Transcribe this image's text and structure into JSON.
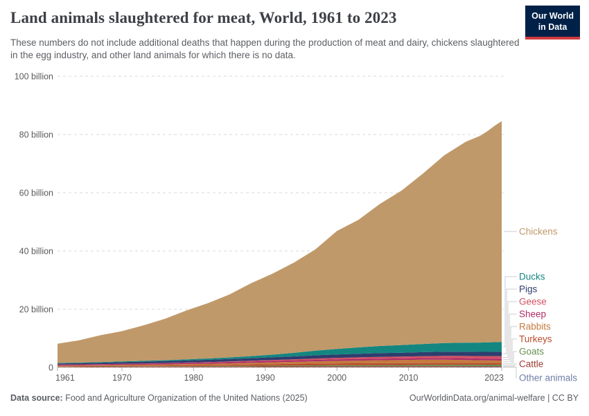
{
  "header": {
    "title": "Land animals slaughtered for meat, World, 1961 to 2023",
    "subtitle": "These numbers do not include additional deaths that happen during the production of meat and dairy, chickens slaughtered in the egg industry, and other land animals for which there is no data.",
    "logo": {
      "line1": "Our World",
      "line2": "in Data",
      "bg_color": "#002147",
      "accent_color": "#CE3A3E"
    }
  },
  "chart_data": {
    "type": "area",
    "stacked": true,
    "title": "Land animals slaughtered for meat, World, 1961 to 2023",
    "xlabel": "",
    "ylabel": "",
    "unit": "billion animals per year",
    "ylim": [
      0,
      100
    ],
    "grid": true,
    "legend_position": "right",
    "x": [
      1961,
      1964,
      1967,
      1970,
      1973,
      1976,
      1979,
      1982,
      1985,
      1988,
      1991,
      1994,
      1997,
      2000,
      2003,
      2006,
      2009,
      2012,
      2015,
      2018,
      2020,
      2021,
      2022,
      2023
    ],
    "series": [
      {
        "name": "Chickens",
        "color": "#C0996A",
        "values": [
          6.6,
          7.6,
          9.2,
          10.4,
          12.2,
          14.2,
          16.8,
          19.0,
          21.6,
          25.0,
          27.8,
          31.0,
          34.8,
          40.5,
          43.8,
          48.8,
          53.0,
          58.5,
          64.5,
          69.0,
          71.0,
          72.5,
          74.3,
          75.8
        ]
      },
      {
        "name": "Ducks",
        "color": "#148680",
        "values": [
          0.17,
          0.19,
          0.21,
          0.24,
          0.28,
          0.32,
          0.38,
          0.45,
          0.55,
          0.7,
          0.9,
          1.2,
          1.6,
          1.9,
          2.2,
          2.45,
          2.65,
          2.8,
          2.95,
          3.1,
          3.2,
          3.25,
          3.3,
          3.4
        ]
      },
      {
        "name": "Pigs",
        "color": "#2E3D6E",
        "values": [
          0.38,
          0.43,
          0.48,
          0.55,
          0.6,
          0.66,
          0.72,
          0.78,
          0.84,
          0.9,
          0.96,
          1.02,
          1.1,
          1.17,
          1.22,
          1.28,
          1.32,
          1.37,
          1.45,
          1.47,
          1.44,
          1.46,
          1.48,
          1.5
        ]
      },
      {
        "name": "Geese",
        "color": "#D25062",
        "values": [
          0.03,
          0.04,
          0.04,
          0.05,
          0.06,
          0.08,
          0.1,
          0.13,
          0.17,
          0.22,
          0.28,
          0.36,
          0.45,
          0.52,
          0.58,
          0.61,
          0.63,
          0.66,
          0.7,
          0.78,
          0.83,
          0.84,
          0.86,
          0.87
        ]
      },
      {
        "name": "Sheep",
        "color": "#AE2D68",
        "values": [
          0.33,
          0.34,
          0.35,
          0.37,
          0.38,
          0.4,
          0.42,
          0.44,
          0.46,
          0.48,
          0.5,
          0.51,
          0.52,
          0.53,
          0.54,
          0.55,
          0.55,
          0.57,
          0.58,
          0.6,
          0.61,
          0.62,
          0.63,
          0.64
        ]
      },
      {
        "name": "Rabbits",
        "color": "#C47A3D",
        "values": [
          0.2,
          0.23,
          0.26,
          0.3,
          0.33,
          0.36,
          0.4,
          0.45,
          0.5,
          0.56,
          0.62,
          0.7,
          0.78,
          0.85,
          0.92,
          1.0,
          1.08,
          1.15,
          1.18,
          1.05,
          0.95,
          0.92,
          0.89,
          0.86
        ]
      },
      {
        "name": "Turkeys",
        "color": "#B94D2C",
        "values": [
          0.13,
          0.15,
          0.17,
          0.2,
          0.23,
          0.26,
          0.3,
          0.35,
          0.4,
          0.46,
          0.52,
          0.56,
          0.61,
          0.65,
          0.66,
          0.66,
          0.65,
          0.64,
          0.63,
          0.6,
          0.58,
          0.57,
          0.56,
          0.55
        ]
      },
      {
        "name": "Goats",
        "color": "#6A9152",
        "values": [
          0.1,
          0.11,
          0.12,
          0.13,
          0.14,
          0.16,
          0.17,
          0.19,
          0.22,
          0.25,
          0.28,
          0.31,
          0.34,
          0.37,
          0.39,
          0.41,
          0.43,
          0.45,
          0.47,
          0.49,
          0.5,
          0.51,
          0.52,
          0.53
        ]
      },
      {
        "name": "Cattle",
        "color": "#9C3D35",
        "values": [
          0.17,
          0.18,
          0.19,
          0.2,
          0.21,
          0.22,
          0.23,
          0.24,
          0.25,
          0.26,
          0.27,
          0.28,
          0.29,
          0.3,
          0.3,
          0.31,
          0.31,
          0.32,
          0.32,
          0.33,
          0.33,
          0.33,
          0.33,
          0.33
        ]
      },
      {
        "name": "Other animals",
        "color": "#6F7EA6",
        "values": [
          0.03,
          0.03,
          0.04,
          0.04,
          0.05,
          0.05,
          0.06,
          0.06,
          0.07,
          0.07,
          0.08,
          0.08,
          0.09,
          0.09,
          0.09,
          0.1,
          0.1,
          0.1,
          0.1,
          0.11,
          0.11,
          0.11,
          0.11,
          0.11
        ]
      }
    ],
    "yticks": [
      {
        "value": 0,
        "label": "0"
      },
      {
        "value": 20,
        "label": "20 billion"
      },
      {
        "value": 40,
        "label": "40 billion"
      },
      {
        "value": 60,
        "label": "60 billion"
      },
      {
        "value": 80,
        "label": "80 billion"
      },
      {
        "value": 100,
        "label": "100 billion"
      }
    ],
    "xticks": [
      1961,
      1970,
      1980,
      1990,
      2000,
      2010,
      2023
    ]
  },
  "footer": {
    "source_label": "Data source:",
    "source_text": " Food and Agriculture Organization of the United Nations (2025)",
    "site_text": "OurWorldinData.org/animal-welfare",
    "separator": " | ",
    "license_text": "CC BY"
  }
}
